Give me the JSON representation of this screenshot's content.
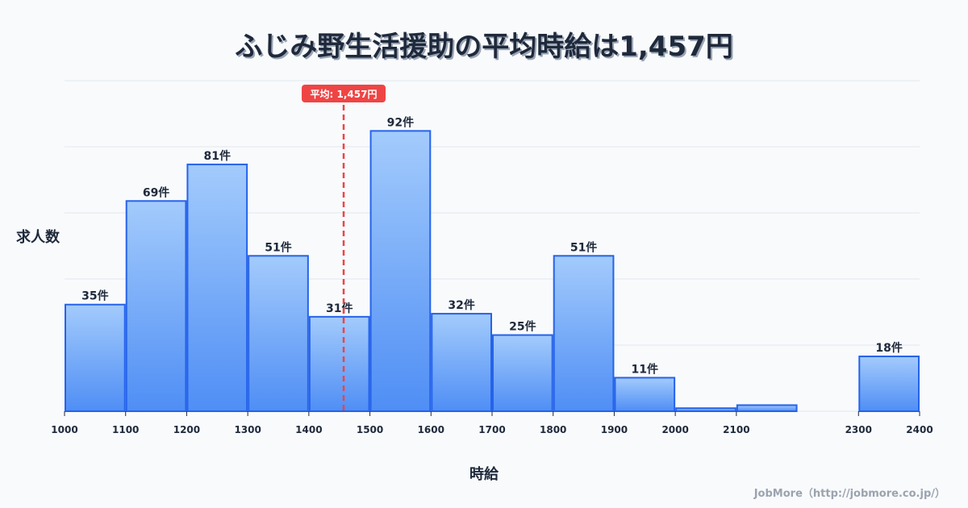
{
  "title": "ふじみ野生活援助の平均時給は1,457円",
  "y_axis_label": "求人数",
  "x_axis_label": "時給",
  "credit": "JobMore（http://jobmore.co.jp/）",
  "average_label": "平均: 1,457円",
  "colors": {
    "bar_top": "#a3cbfc",
    "bar_bottom": "#4f8ef5",
    "bar_stroke": "#2563eb",
    "average_line": "#ef4444",
    "grid": "#e2e8f0",
    "background": "#f8fafc"
  },
  "chart_data": {
    "type": "bar",
    "title": "ふじみ野生活援助の平均時給は1,457円",
    "xlabel": "時給",
    "ylabel": "求人数",
    "unit_suffix": "件",
    "bins": [
      {
        "from": 1000,
        "to": 1100,
        "value": 35,
        "label": "35件"
      },
      {
        "from": 1100,
        "to": 1200,
        "value": 69,
        "label": "69件"
      },
      {
        "from": 1200,
        "to": 1300,
        "value": 81,
        "label": "81件"
      },
      {
        "from": 1300,
        "to": 1400,
        "value": 51,
        "label": "51件"
      },
      {
        "from": 1400,
        "to": 1500,
        "value": 31,
        "label": "31件"
      },
      {
        "from": 1500,
        "to": 1600,
        "value": 92,
        "label": "92件"
      },
      {
        "from": 1600,
        "to": 1700,
        "value": 32,
        "label": "32件"
      },
      {
        "from": 1700,
        "to": 1800,
        "value": 25,
        "label": "25件"
      },
      {
        "from": 1800,
        "to": 1900,
        "value": 51,
        "label": "51件"
      },
      {
        "from": 1900,
        "to": 2000,
        "value": 11,
        "label": "11件"
      },
      {
        "from": 2000,
        "to": 2100,
        "value": 1,
        "label": ""
      },
      {
        "from": 2100,
        "to": 2200,
        "value": 2,
        "label": ""
      },
      {
        "from": 2300,
        "to": 2400,
        "value": 18,
        "label": "18件"
      }
    ],
    "x_ticks": [
      1000,
      1100,
      1200,
      1300,
      1400,
      1500,
      1600,
      1700,
      1800,
      1900,
      2000,
      2100,
      2300,
      2400
    ],
    "xlim": [
      1000,
      2400
    ],
    "ylim": [
      0,
      108.5
    ],
    "grid": true,
    "average": 1457,
    "average_annotation": "平均: 1,457円"
  }
}
